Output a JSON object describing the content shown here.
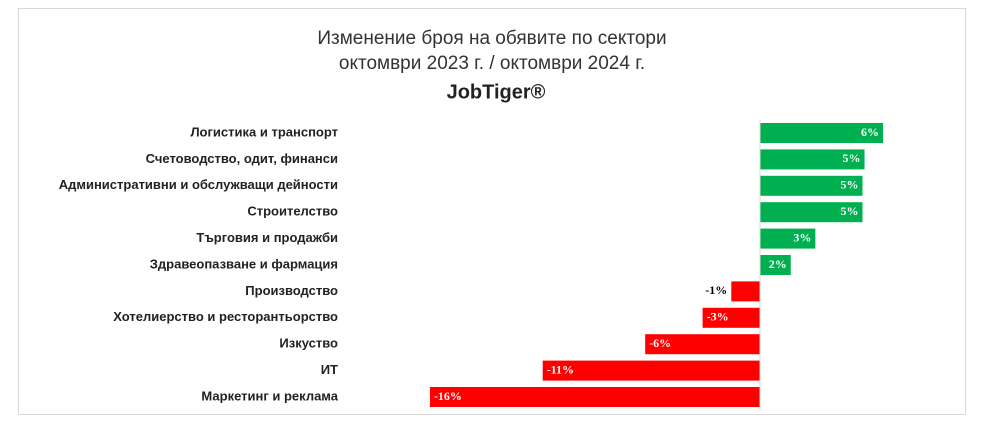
{
  "chart_data": {
    "type": "bar",
    "orientation": "horizontal",
    "title": "Изменение броя на обявите по сектори",
    "subtitle": "октомври 2023 г. / октомври 2024 г.",
    "brand": "JobTiger®",
    "categories": [
      "Логистика и транспорт",
      "Счетоводство, одит, финанси",
      "Административни и обслужващи дейности",
      "Строителство",
      "Търговия и продажби",
      "Здравеопазване и фармация",
      "Производство",
      "Хотелиерство и ресторантьорство",
      "Изкуство",
      "ИТ",
      "Маркетинг и реклама"
    ],
    "values": [
      6.0,
      5.1,
      5.0,
      5.0,
      2.7,
      1.5,
      -1.4,
      -2.8,
      -5.6,
      -10.6,
      -16.1
    ],
    "value_labels": [
      "6%",
      "5%",
      "5%",
      "5%",
      "3%",
      "2%",
      "-1%",
      "-3%",
      "-6%",
      "-11%",
      "-16%"
    ],
    "color_positive": "#00b050",
    "color_negative": "#ff0000",
    "grid": false
  }
}
